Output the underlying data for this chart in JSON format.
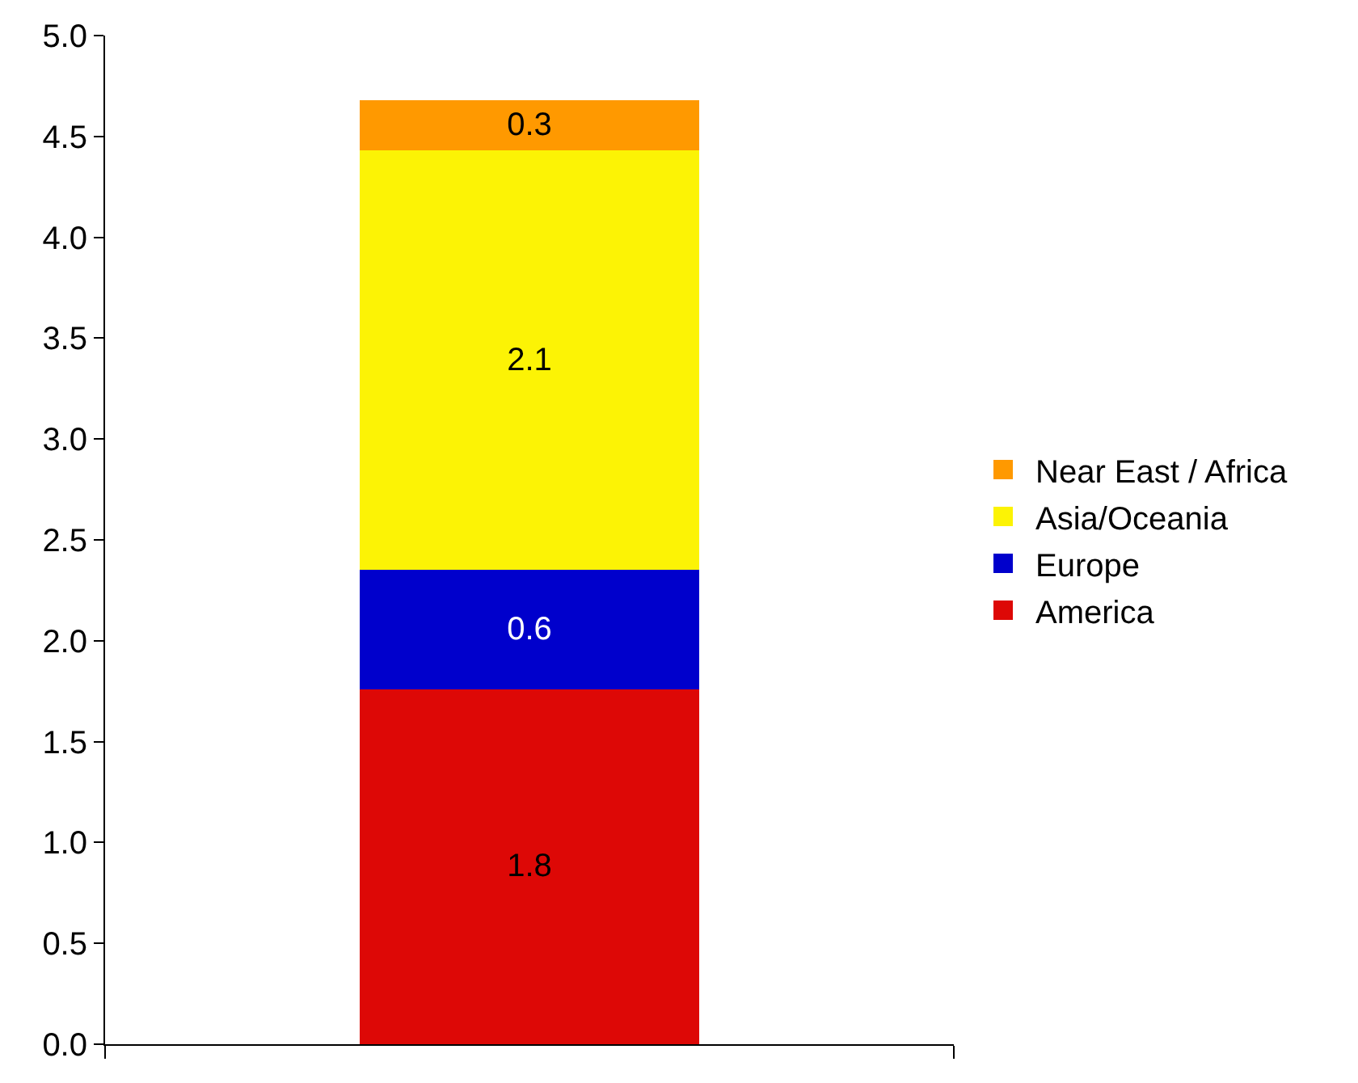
{
  "chart_data": {
    "type": "bar",
    "stacked": true,
    "categories": [
      null
    ],
    "series": [
      {
        "name": "America",
        "color": "#dd0806",
        "values": [
          1.76
        ],
        "value_labels": [
          "1.8"
        ]
      },
      {
        "name": "Europe",
        "color": "#0000cc",
        "values": [
          0.59
        ],
        "value_labels": [
          "0.6"
        ]
      },
      {
        "name": "Asia/Oceania",
        "color": "#fcf305",
        "values": [
          2.08
        ],
        "value_labels": [
          "2.1"
        ]
      },
      {
        "name": "Near East / Africa",
        "color": "#ff9900",
        "values": [
          0.25
        ],
        "value_labels": [
          "0.3"
        ]
      }
    ],
    "ylim": [
      0,
      5
    ],
    "yticks": [
      {
        "value": 0,
        "label": "0.0"
      },
      {
        "value": 0.5,
        "label": "0.5"
      },
      {
        "value": 1,
        "label": "1.0"
      },
      {
        "value": 1.5,
        "label": "1.5"
      },
      {
        "value": 2,
        "label": "2.0"
      },
      {
        "value": 2.5,
        "label": "2.5"
      },
      {
        "value": 3,
        "label": "3.0"
      },
      {
        "value": 3.5,
        "label": "3.5"
      },
      {
        "value": 4,
        "label": "4.0"
      },
      {
        "value": 4.5,
        "label": "4.5"
      },
      {
        "value": 5,
        "label": "5.0"
      }
    ],
    "tick_labels": "y",
    "legend": "right"
  }
}
